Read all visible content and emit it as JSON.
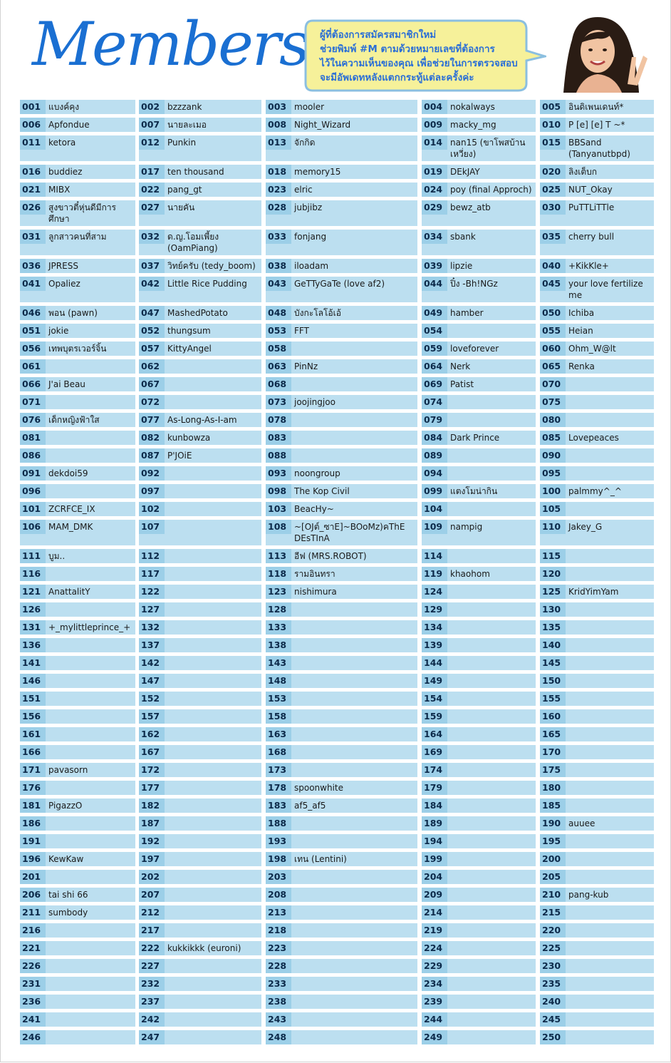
{
  "header": {
    "title": "Members",
    "notice": [
      "ผู้ที่ต้องการสมัครสมาชิกใหม่",
      "ช่วยพิมพ์ #M ตามด้วยหมายเลขที่ต้องการ",
      "ไว้ในความเห็นของคุณ เพื่อช่วยในการตรวจสอบ",
      "จะมีอัพเดทหลังแตกกระทู้แต่ละครั้งค่ะ"
    ]
  },
  "colors": {
    "title": "#1a6fd2",
    "cell": "#bcdff0",
    "number_cell": "#9ccfe8",
    "bubble": "#f6f19a",
    "bubble_border": "#8bbfe0"
  },
  "members": [
    {
      "num": "001",
      "name": "แบงค์คุง"
    },
    {
      "num": "002",
      "name": "bzzzank"
    },
    {
      "num": "003",
      "name": "mooler"
    },
    {
      "num": "004",
      "name": "nokalways"
    },
    {
      "num": "005",
      "name": "อินดิเพนเดนท์*"
    },
    {
      "num": "006",
      "name": "Apfondue"
    },
    {
      "num": "007",
      "name": "นายละเมอ"
    },
    {
      "num": "008",
      "name": "Night_Wizard"
    },
    {
      "num": "009",
      "name": "macky_mg"
    },
    {
      "num": "010",
      "name": "P [e] [e] T ~*"
    },
    {
      "num": "011",
      "name": "ketora"
    },
    {
      "num": "012",
      "name": "Punkin"
    },
    {
      "num": "013",
      "name": "จักกิด"
    },
    {
      "num": "014",
      "name": "nan15 (ขาโพสบ้านเหวี่ยง)"
    },
    {
      "num": "015",
      "name": "BBSand (Tanyanutbpd)"
    },
    {
      "num": "016",
      "name": "buddiez"
    },
    {
      "num": "017",
      "name": "ten thousand"
    },
    {
      "num": "018",
      "name": "memory15"
    },
    {
      "num": "019",
      "name": "DEkJAY"
    },
    {
      "num": "020",
      "name": "ลิงเต็บก"
    },
    {
      "num": "021",
      "name": "MIBX"
    },
    {
      "num": "022",
      "name": "pang_gt"
    },
    {
      "num": "023",
      "name": "elric"
    },
    {
      "num": "024",
      "name": "poy (final Approch)"
    },
    {
      "num": "025",
      "name": "NUT_Okay"
    },
    {
      "num": "026",
      "name": "สูงขาวตี๋หุ่นดีมีการศึกษา"
    },
    {
      "num": "027",
      "name": "นายคัน"
    },
    {
      "num": "028",
      "name": "jubjibz"
    },
    {
      "num": "029",
      "name": "bewz_atb"
    },
    {
      "num": "030",
      "name": "PuTTLiTTle"
    },
    {
      "num": "031",
      "name": "ลูกสาวคนที่สาม"
    },
    {
      "num": "032",
      "name": "ด.ญ.โอมเพี้ยง (OamPiang)"
    },
    {
      "num": "033",
      "name": "fonjang"
    },
    {
      "num": "034",
      "name": "sbank"
    },
    {
      "num": "035",
      "name": "cherry bull"
    },
    {
      "num": "036",
      "name": "JPRESS"
    },
    {
      "num": "037",
      "name": "วิทย์ครับ (tedy_boom)"
    },
    {
      "num": "038",
      "name": "iloadam"
    },
    {
      "num": "039",
      "name": "lipzie"
    },
    {
      "num": "040",
      "name": "+KikKle+"
    },
    {
      "num": "041",
      "name": "Opaliez"
    },
    {
      "num": "042",
      "name": "Little Rice Pudding"
    },
    {
      "num": "043",
      "name": "GeTTyGaTe (love af2)"
    },
    {
      "num": "044",
      "name": "ปิ๋ง -Bh!NGz"
    },
    {
      "num": "045",
      "name": "your love fertilize me"
    },
    {
      "num": "046",
      "name": "พอน (pawn)"
    },
    {
      "num": "047",
      "name": "MashedPotato"
    },
    {
      "num": "048",
      "name": "บังกะโลโอ้เอ้"
    },
    {
      "num": "049",
      "name": "hamber"
    },
    {
      "num": "050",
      "name": "Ichiba"
    },
    {
      "num": "051",
      "name": "jokie"
    },
    {
      "num": "052",
      "name": "thungsum"
    },
    {
      "num": "053",
      "name": "FFT"
    },
    {
      "num": "054",
      "name": ""
    },
    {
      "num": "055",
      "name": "Heian"
    },
    {
      "num": "056",
      "name": "เทพบุตรเวอร์จิ้น"
    },
    {
      "num": "057",
      "name": "KittyAngel"
    },
    {
      "num": "058",
      "name": ""
    },
    {
      "num": "059",
      "name": "loveforever"
    },
    {
      "num": "060",
      "name": "Ohm_W@lt"
    },
    {
      "num": "061",
      "name": ""
    },
    {
      "num": "062",
      "name": ""
    },
    {
      "num": "063",
      "name": "PinNz"
    },
    {
      "num": "064",
      "name": "Nerk"
    },
    {
      "num": "065",
      "name": "Renka"
    },
    {
      "num": "066",
      "name": "J'ai Beau"
    },
    {
      "num": "067",
      "name": ""
    },
    {
      "num": "068",
      "name": ""
    },
    {
      "num": "069",
      "name": "Patist"
    },
    {
      "num": "070",
      "name": ""
    },
    {
      "num": "071",
      "name": ""
    },
    {
      "num": "072",
      "name": ""
    },
    {
      "num": "073",
      "name": "joojingjoo"
    },
    {
      "num": "074",
      "name": ""
    },
    {
      "num": "075",
      "name": ""
    },
    {
      "num": "076",
      "name": "เด็กหญิงฟ้าใส"
    },
    {
      "num": "077",
      "name": "As-Long-As-I-am"
    },
    {
      "num": "078",
      "name": ""
    },
    {
      "num": "079",
      "name": ""
    },
    {
      "num": "080",
      "name": ""
    },
    {
      "num": "081",
      "name": ""
    },
    {
      "num": "082",
      "name": "kunbowza"
    },
    {
      "num": "083",
      "name": ""
    },
    {
      "num": "084",
      "name": "Dark Prince"
    },
    {
      "num": "085",
      "name": "Lovepeaces"
    },
    {
      "num": "086",
      "name": ""
    },
    {
      "num": "087",
      "name": "P'JOiE"
    },
    {
      "num": "088",
      "name": ""
    },
    {
      "num": "089",
      "name": ""
    },
    {
      "num": "090",
      "name": ""
    },
    {
      "num": "091",
      "name": "dekdoi59"
    },
    {
      "num": "092",
      "name": ""
    },
    {
      "num": "093",
      "name": "noongroup"
    },
    {
      "num": "094",
      "name": ""
    },
    {
      "num": "095",
      "name": ""
    },
    {
      "num": "096",
      "name": ""
    },
    {
      "num": "097",
      "name": ""
    },
    {
      "num": "098",
      "name": "The Kop Civil"
    },
    {
      "num": "099",
      "name": "แตงโมน่ากิน"
    },
    {
      "num": "100",
      "name": "palmmy^_^"
    },
    {
      "num": "101",
      "name": "ZCRFCE_IX"
    },
    {
      "num": "102",
      "name": ""
    },
    {
      "num": "103",
      "name": "BeacHy~"
    },
    {
      "num": "104",
      "name": ""
    },
    {
      "num": "105",
      "name": ""
    },
    {
      "num": "106",
      "name": "MAM_DMK"
    },
    {
      "num": "107",
      "name": ""
    },
    {
      "num": "108",
      "name": "~[OJต์_ซาE]~BOoMz)คThE DEsTInA"
    },
    {
      "num": "109",
      "name": "nampig"
    },
    {
      "num": "110",
      "name": "Jakey_G"
    },
    {
      "num": "111",
      "name": "บูม.."
    },
    {
      "num": "112",
      "name": ""
    },
    {
      "num": "113",
      "name": "อีฟ (MRS.ROBOT)"
    },
    {
      "num": "114",
      "name": ""
    },
    {
      "num": "115",
      "name": ""
    },
    {
      "num": "116",
      "name": ""
    },
    {
      "num": "117",
      "name": ""
    },
    {
      "num": "118",
      "name": "รามอินทรา"
    },
    {
      "num": "119",
      "name": "khaohom"
    },
    {
      "num": "120",
      "name": ""
    },
    {
      "num": "121",
      "name": "AnattalitY"
    },
    {
      "num": "122",
      "name": ""
    },
    {
      "num": "123",
      "name": "nishimura"
    },
    {
      "num": "124",
      "name": ""
    },
    {
      "num": "125",
      "name": "KridYimYam"
    },
    {
      "num": "126",
      "name": ""
    },
    {
      "num": "127",
      "name": ""
    },
    {
      "num": "128",
      "name": ""
    },
    {
      "num": "129",
      "name": ""
    },
    {
      "num": "130",
      "name": ""
    },
    {
      "num": "131",
      "name": "+_mylittleprince_+"
    },
    {
      "num": "132",
      "name": ""
    },
    {
      "num": "133",
      "name": ""
    },
    {
      "num": "134",
      "name": ""
    },
    {
      "num": "135",
      "name": ""
    },
    {
      "num": "136",
      "name": ""
    },
    {
      "num": "137",
      "name": ""
    },
    {
      "num": "138",
      "name": ""
    },
    {
      "num": "139",
      "name": ""
    },
    {
      "num": "140",
      "name": ""
    },
    {
      "num": "141",
      "name": ""
    },
    {
      "num": "142",
      "name": ""
    },
    {
      "num": "143",
      "name": ""
    },
    {
      "num": "144",
      "name": ""
    },
    {
      "num": "145",
      "name": ""
    },
    {
      "num": "146",
      "name": ""
    },
    {
      "num": "147",
      "name": ""
    },
    {
      "num": "148",
      "name": ""
    },
    {
      "num": "149",
      "name": ""
    },
    {
      "num": "150",
      "name": ""
    },
    {
      "num": "151",
      "name": ""
    },
    {
      "num": "152",
      "name": ""
    },
    {
      "num": "153",
      "name": ""
    },
    {
      "num": "154",
      "name": ""
    },
    {
      "num": "155",
      "name": ""
    },
    {
      "num": "156",
      "name": ""
    },
    {
      "num": "157",
      "name": ""
    },
    {
      "num": "158",
      "name": ""
    },
    {
      "num": "159",
      "name": ""
    },
    {
      "num": "160",
      "name": ""
    },
    {
      "num": "161",
      "name": ""
    },
    {
      "num": "162",
      "name": ""
    },
    {
      "num": "163",
      "name": ""
    },
    {
      "num": "164",
      "name": ""
    },
    {
      "num": "165",
      "name": ""
    },
    {
      "num": "166",
      "name": ""
    },
    {
      "num": "167",
      "name": ""
    },
    {
      "num": "168",
      "name": ""
    },
    {
      "num": "169",
      "name": ""
    },
    {
      "num": "170",
      "name": ""
    },
    {
      "num": "171",
      "name": "pavasorn"
    },
    {
      "num": "172",
      "name": ""
    },
    {
      "num": "173",
      "name": ""
    },
    {
      "num": "174",
      "name": ""
    },
    {
      "num": "175",
      "name": ""
    },
    {
      "num": "176",
      "name": ""
    },
    {
      "num": "177",
      "name": ""
    },
    {
      "num": "178",
      "name": "spoonwhite"
    },
    {
      "num": "179",
      "name": ""
    },
    {
      "num": "180",
      "name": ""
    },
    {
      "num": "181",
      "name": "PigazzO"
    },
    {
      "num": "182",
      "name": ""
    },
    {
      "num": "183",
      "name": "af5_af5"
    },
    {
      "num": "184",
      "name": ""
    },
    {
      "num": "185",
      "name": ""
    },
    {
      "num": "186",
      "name": ""
    },
    {
      "num": "187",
      "name": ""
    },
    {
      "num": "188",
      "name": ""
    },
    {
      "num": "189",
      "name": ""
    },
    {
      "num": "190",
      "name": "auuee"
    },
    {
      "num": "191",
      "name": ""
    },
    {
      "num": "192",
      "name": ""
    },
    {
      "num": "193",
      "name": ""
    },
    {
      "num": "194",
      "name": ""
    },
    {
      "num": "195",
      "name": ""
    },
    {
      "num": "196",
      "name": "KewKaw"
    },
    {
      "num": "197",
      "name": ""
    },
    {
      "num": "198",
      "name": "เทน (Lentini)"
    },
    {
      "num": "199",
      "name": ""
    },
    {
      "num": "200",
      "name": ""
    },
    {
      "num": "201",
      "name": ""
    },
    {
      "num": "202",
      "name": ""
    },
    {
      "num": "203",
      "name": ""
    },
    {
      "num": "204",
      "name": ""
    },
    {
      "num": "205",
      "name": ""
    },
    {
      "num": "206",
      "name": "tai shi 66"
    },
    {
      "num": "207",
      "name": ""
    },
    {
      "num": "208",
      "name": ""
    },
    {
      "num": "209",
      "name": ""
    },
    {
      "num": "210",
      "name": "pang-kub"
    },
    {
      "num": "211",
      "name": "sumbody"
    },
    {
      "num": "212",
      "name": ""
    },
    {
      "num": "213",
      "name": ""
    },
    {
      "num": "214",
      "name": ""
    },
    {
      "num": "215",
      "name": ""
    },
    {
      "num": "216",
      "name": ""
    },
    {
      "num": "217",
      "name": ""
    },
    {
      "num": "218",
      "name": ""
    },
    {
      "num": "219",
      "name": ""
    },
    {
      "num": "220",
      "name": ""
    },
    {
      "num": "221",
      "name": ""
    },
    {
      "num": "222",
      "name": "kukkikkk (euroni)"
    },
    {
      "num": "223",
      "name": ""
    },
    {
      "num": "224",
      "name": ""
    },
    {
      "num": "225",
      "name": ""
    },
    {
      "num": "226",
      "name": ""
    },
    {
      "num": "227",
      "name": ""
    },
    {
      "num": "228",
      "name": ""
    },
    {
      "num": "229",
      "name": ""
    },
    {
      "num": "230",
      "name": ""
    },
    {
      "num": "231",
      "name": ""
    },
    {
      "num": "232",
      "name": ""
    },
    {
      "num": "233",
      "name": ""
    },
    {
      "num": "234",
      "name": ""
    },
    {
      "num": "235",
      "name": ""
    },
    {
      "num": "236",
      "name": ""
    },
    {
      "num": "237",
      "name": ""
    },
    {
      "num": "238",
      "name": ""
    },
    {
      "num": "239",
      "name": ""
    },
    {
      "num": "240",
      "name": ""
    },
    {
      "num": "241",
      "name": ""
    },
    {
      "num": "242",
      "name": ""
    },
    {
      "num": "243",
      "name": ""
    },
    {
      "num": "244",
      "name": ""
    },
    {
      "num": "245",
      "name": ""
    },
    {
      "num": "246",
      "name": ""
    },
    {
      "num": "247",
      "name": ""
    },
    {
      "num": "248",
      "name": ""
    },
    {
      "num": "249",
      "name": ""
    },
    {
      "num": "250",
      "name": ""
    }
  ]
}
